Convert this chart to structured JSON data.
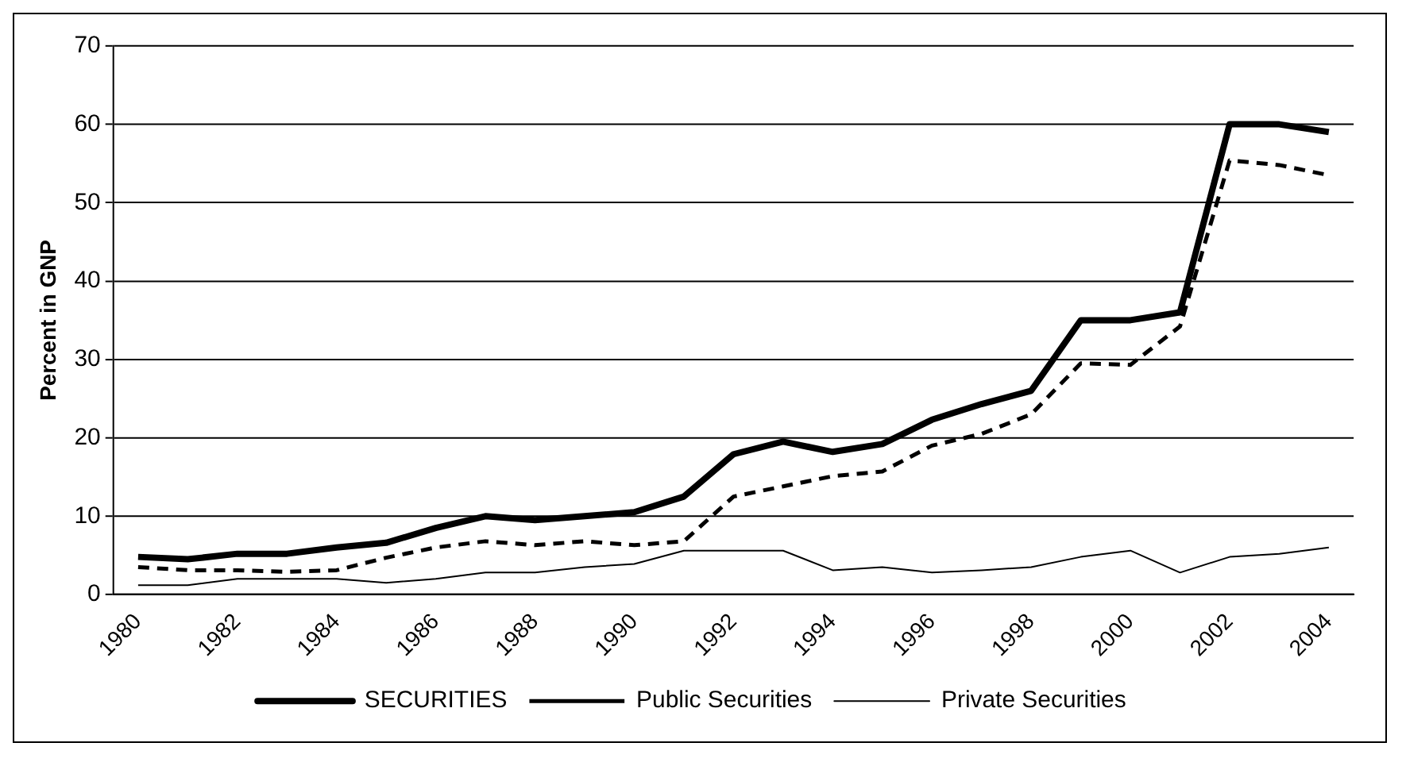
{
  "chart_data": {
    "type": "line",
    "ylabel": "Percent in GNP",
    "categories": [
      "1980",
      null,
      "1982",
      null,
      "1984",
      null,
      "1986",
      null,
      "1988",
      null,
      "1990",
      null,
      "1992",
      null,
      "1994",
      null,
      "1996",
      null,
      "1998",
      null,
      "2000",
      null,
      "2002",
      null,
      "2004"
    ],
    "series": [
      {
        "name": "SECURITIES",
        "color": "#000000",
        "line_style": "solid",
        "values": [
          4.8,
          4.5,
          5.2,
          5.2,
          6,
          6.6,
          8.5,
          10,
          9.5,
          10,
          10.5,
          12.5,
          17.9,
          19.5,
          18.2,
          19.2,
          22.3,
          24.3,
          26,
          35,
          35,
          36,
          60,
          60,
          59
        ]
      },
      {
        "name": "Public Securities",
        "color": "#000000",
        "line_style": "dashed",
        "values": [
          3.5,
          3.1,
          3.1,
          2.9,
          3.1,
          4.7,
          6,
          6.8,
          6.3,
          6.8,
          6.3,
          6.8,
          12.5,
          13.8,
          15.1,
          15.7,
          19,
          20.5,
          23,
          29.5,
          29.3,
          34.2,
          55.4,
          54.8,
          53.5
        ]
      },
      {
        "name": "Private Securities",
        "color": "#000000",
        "line_style": "solid",
        "values": [
          1.2,
          1.2,
          2,
          2,
          2,
          1.5,
          2,
          2.8,
          2.8,
          3.5,
          3.9,
          5.6,
          5.6,
          5.6,
          3.1,
          3.5,
          2.8,
          3.1,
          3.5,
          4.8,
          5.6,
          2.8,
          4.8,
          5.2,
          6
        ]
      }
    ],
    "ylim": [
      0,
      70
    ],
    "yticks": [
      0,
      10,
      20,
      30,
      40,
      50,
      60,
      70
    ],
    "grid": "y",
    "legend": "bottom",
    "marker": "none"
  }
}
